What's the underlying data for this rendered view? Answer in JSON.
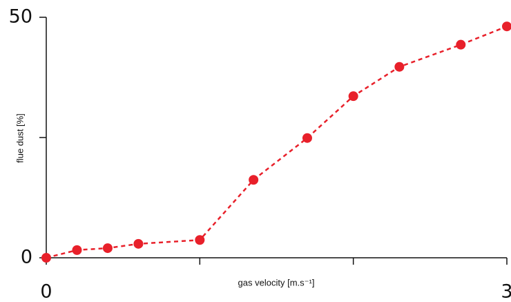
{
  "chart_data": {
    "type": "scatter",
    "x_label": "gas velocity [m.s⁻¹]",
    "y_label": "flue dust [%]",
    "series": [
      {
        "name": null,
        "color": "#e8202a",
        "x": [
          0,
          0.2,
          0.4,
          0.6,
          1,
          1.35,
          1.7,
          2,
          2.3,
          2.7,
          3
        ],
        "values": [
          0,
          1.6,
          2,
          2.9,
          3.7,
          16.2,
          24.9,
          33.6,
          39.7,
          44.3,
          48.1
        ]
      }
    ],
    "xlim": [
      0,
      3
    ],
    "ylim": [
      0,
      50
    ],
    "xticks": [
      0,
      {
        "value": 1,
        "label": null
      },
      {
        "value": 2,
        "label": null
      },
      3
    ],
    "yticks": [
      0,
      {
        "value": 25,
        "label": null
      },
      50
    ],
    "line_style": "dashed"
  }
}
